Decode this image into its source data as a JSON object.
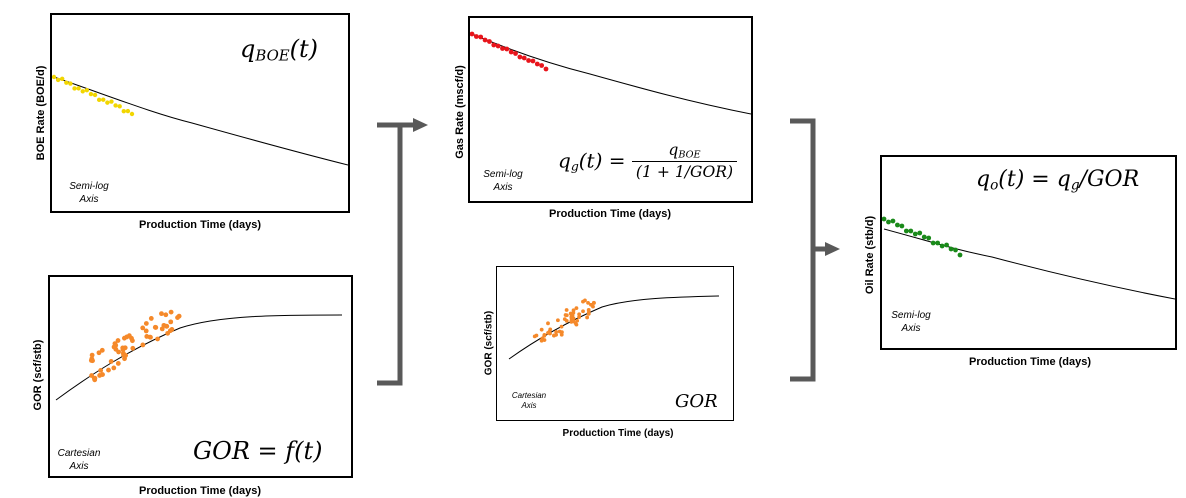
{
  "panels": {
    "boe": {
      "ylabel": "BOE Rate (BOE/d)",
      "xlabel": "Production Time (days)",
      "axis_note_1": "Semi-log",
      "axis_note_2": "Axis",
      "formula_main": "q",
      "formula_sub": "BOE",
      "formula_tail": "(t)",
      "dot_color": "#f2d600"
    },
    "gor_left": {
      "ylabel": "GOR (scf/stb)",
      "xlabel": "Production Time (days)",
      "axis_note_1": "Cartesian",
      "axis_note_2": "Axis",
      "formula": "GOR = f(t)",
      "dot_color": "#f5892a"
    },
    "gas": {
      "ylabel": "Gas Rate (mscf/d)",
      "xlabel": "Production Time (days)",
      "axis_note_1": "Semi-log",
      "axis_note_2": "Axis",
      "formula_lhs_main": "q",
      "formula_lhs_sub": "g",
      "formula_lhs_tail": "(t) =",
      "formula_num_main": "q",
      "formula_num_sub": "BOE",
      "formula_den": "(1 + 1/GOR)",
      "dot_color": "#e8141b"
    },
    "gor_mid": {
      "ylabel": "GOR (scf/stb)",
      "xlabel": "Production Time (days)",
      "axis_note_1": "Cartesian",
      "axis_note_2": "Axis",
      "formula": "GOR",
      "dot_color": "#f5892a"
    },
    "oil": {
      "ylabel": "Oil Rate (stb/d)",
      "xlabel": "Production Time (days)",
      "axis_note_1": "Semi-log",
      "axis_note_2": "Axis",
      "formula_lhs_main": "q",
      "formula_lhs_sub": "o",
      "formula_mid": "(t) = q",
      "formula_mid_sub": "g",
      "formula_tail": "/GOR",
      "dot_color": "#1a8a1a"
    }
  },
  "arrow_color": "#595959"
}
